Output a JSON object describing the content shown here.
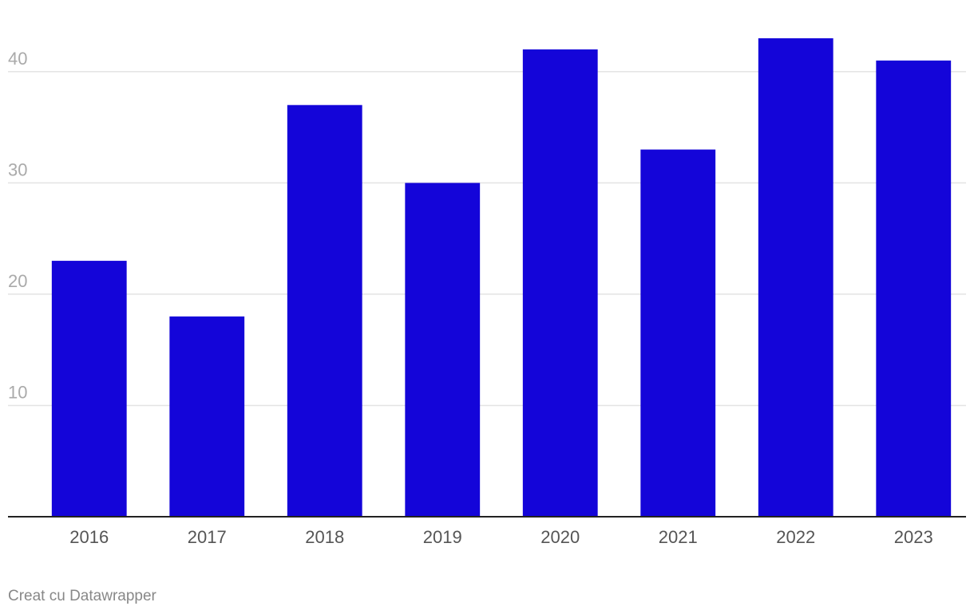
{
  "chart_data": {
    "type": "bar",
    "categories": [
      "2016",
      "2017",
      "2018",
      "2019",
      "2020",
      "2021",
      "2022",
      "2023"
    ],
    "values": [
      23,
      18,
      37,
      30,
      42,
      33,
      43,
      41
    ],
    "color": "#1405d9",
    "ylim": [
      0,
      43
    ],
    "yticks": [
      10,
      20,
      30,
      40
    ],
    "grid": true,
    "credit": "Creat cu Datawrapper"
  }
}
